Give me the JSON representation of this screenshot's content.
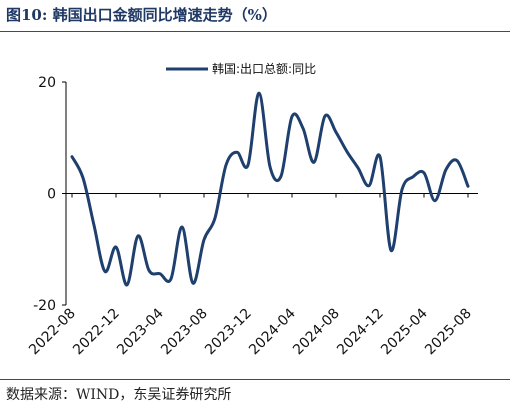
{
  "figure": {
    "title": "图10:  韩国出口金额同比增速走势（%）",
    "source": "数据来源：WIND，东吴证券研究所"
  },
  "colors": {
    "line": "#1f3f6e",
    "axis": "#000000"
  },
  "chart_data": {
    "type": "line",
    "title": "",
    "xlabel": "",
    "ylabel": "",
    "ylim": [
      -20,
      20
    ],
    "yticks": [
      -20,
      0,
      20
    ],
    "xtick_labels": [
      "2022-08",
      "2022-12",
      "2023-04",
      "2023-08",
      "2023-12",
      "2024-04",
      "2024-08",
      "2024-12",
      "2025-04",
      "2025-08"
    ],
    "legend": "top-center",
    "grid": false,
    "series": [
      {
        "name": "韩国:出口总额:同比",
        "x": [
          "2022-08",
          "2022-09",
          "2022-10",
          "2022-11",
          "2022-12",
          "2023-01",
          "2023-02",
          "2023-03",
          "2023-04",
          "2023-05",
          "2023-06",
          "2023-07",
          "2023-08",
          "2023-09",
          "2023-10",
          "2023-11",
          "2023-12",
          "2024-01",
          "2024-02",
          "2024-03",
          "2024-04",
          "2024-05",
          "2024-06",
          "2024-07",
          "2024-08",
          "2024-09",
          "2024-10",
          "2024-11",
          "2024-12",
          "2025-01",
          "2025-02",
          "2025-03",
          "2025-04",
          "2025-05",
          "2025-06",
          "2025-07",
          "2025-08"
        ],
        "values": [
          6.6,
          2.8,
          -5.7,
          -14.0,
          -9.6,
          -16.4,
          -7.6,
          -13.8,
          -14.4,
          -15.3,
          -6.0,
          -16.1,
          -8.3,
          -4.4,
          5.1,
          7.4,
          5.1,
          18.0,
          4.8,
          3.1,
          13.8,
          11.7,
          5.6,
          13.9,
          11.0,
          7.5,
          4.6,
          1.4,
          6.6,
          -10.2,
          0.7,
          3.0,
          3.7,
          -1.3,
          4.3,
          5.9,
          1.3
        ]
      }
    ]
  }
}
